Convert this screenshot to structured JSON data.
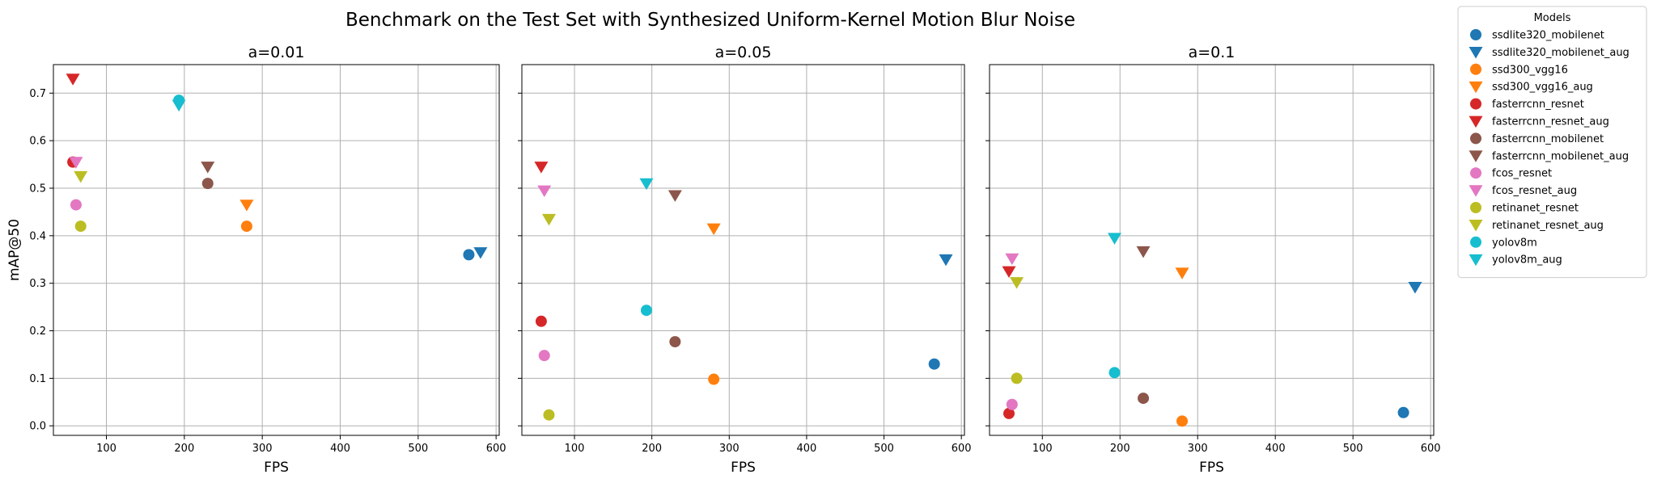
{
  "figure": {
    "title": "Benchmark on the Test Set with Synthesized Uniform-Kernel Motion Blur Noise"
  },
  "legend": {
    "title": "Models",
    "placement": "outside-right",
    "items": [
      {
        "name": "ssdlite320_mobilenet",
        "color": "#1f77b4",
        "marker": "circle"
      },
      {
        "name": "ssdlite320_mobilenet_aug",
        "color": "#1f77b4",
        "marker": "triangle-down"
      },
      {
        "name": "ssd300_vgg16",
        "color": "#ff7f0e",
        "marker": "circle"
      },
      {
        "name": "ssd300_vgg16_aug",
        "color": "#ff7f0e",
        "marker": "triangle-down"
      },
      {
        "name": "fasterrcnn_resnet",
        "color": "#d62728",
        "marker": "circle"
      },
      {
        "name": "fasterrcnn_resnet_aug",
        "color": "#d62728",
        "marker": "triangle-down"
      },
      {
        "name": "fasterrcnn_mobilenet",
        "color": "#8c564b",
        "marker": "circle"
      },
      {
        "name": "fasterrcnn_mobilenet_aug",
        "color": "#8c564b",
        "marker": "triangle-down"
      },
      {
        "name": "fcos_resnet",
        "color": "#e377c2",
        "marker": "circle"
      },
      {
        "name": "fcos_resnet_aug",
        "color": "#e377c2",
        "marker": "triangle-down"
      },
      {
        "name": "retinanet_resnet",
        "color": "#bcbd22",
        "marker": "circle"
      },
      {
        "name": "retinanet_resnet_aug",
        "color": "#bcbd22",
        "marker": "triangle-down"
      },
      {
        "name": "yolov8m",
        "color": "#17becf",
        "marker": "circle"
      },
      {
        "name": "yolov8m_aug",
        "color": "#17becf",
        "marker": "triangle-down"
      }
    ]
  },
  "chart_data": [
    {
      "type": "scatter",
      "title": "a=0.01",
      "xlabel": "FPS",
      "ylabel": "mAP@50",
      "xlim": [
        32,
        604
      ],
      "ylim": [
        -0.02,
        0.76
      ],
      "xticks": [
        100,
        200,
        300,
        400,
        500,
        600
      ],
      "yticks": [
        0.0,
        0.1,
        0.2,
        0.3,
        0.4,
        0.5,
        0.6,
        0.7
      ],
      "grid": true,
      "series": [
        {
          "name": "ssdlite320_mobilenet",
          "x": 565,
          "y": 0.36
        },
        {
          "name": "ssdlite320_mobilenet_aug",
          "x": 580,
          "y": 0.365
        },
        {
          "name": "ssd300_vgg16",
          "x": 280,
          "y": 0.42
        },
        {
          "name": "ssd300_vgg16_aug",
          "x": 280,
          "y": 0.465
        },
        {
          "name": "fasterrcnn_resnet",
          "x": 57,
          "y": 0.555
        },
        {
          "name": "fasterrcnn_resnet_aug",
          "x": 57,
          "y": 0.73
        },
        {
          "name": "fasterrcnn_mobilenet",
          "x": 230,
          "y": 0.51
        },
        {
          "name": "fasterrcnn_mobilenet_aug",
          "x": 230,
          "y": 0.545
        },
        {
          "name": "fcos_resnet",
          "x": 61,
          "y": 0.465
        },
        {
          "name": "fcos_resnet_aug",
          "x": 61,
          "y": 0.555
        },
        {
          "name": "retinanet_resnet",
          "x": 67,
          "y": 0.42
        },
        {
          "name": "retinanet_resnet_aug",
          "x": 67,
          "y": 0.525
        },
        {
          "name": "yolov8m",
          "x": 193,
          "y": 0.685
        },
        {
          "name": "yolov8m_aug",
          "x": 193,
          "y": 0.675
        }
      ]
    },
    {
      "type": "scatter",
      "title": "a=0.05",
      "xlabel": "FPS",
      "ylabel": "",
      "xlim": [
        32,
        604
      ],
      "ylim": [
        -0.02,
        0.76
      ],
      "xticks": [
        100,
        200,
        300,
        400,
        500,
        600
      ],
      "yticks": [
        0.0,
        0.1,
        0.2,
        0.3,
        0.4,
        0.5,
        0.6,
        0.7
      ],
      "grid": true,
      "series": [
        {
          "name": "ssdlite320_mobilenet",
          "x": 565,
          "y": 0.13
        },
        {
          "name": "ssdlite320_mobilenet_aug",
          "x": 580,
          "y": 0.35
        },
        {
          "name": "ssd300_vgg16",
          "x": 280,
          "y": 0.098
        },
        {
          "name": "ssd300_vgg16_aug",
          "x": 280,
          "y": 0.415
        },
        {
          "name": "fasterrcnn_resnet",
          "x": 57,
          "y": 0.22
        },
        {
          "name": "fasterrcnn_resnet_aug",
          "x": 57,
          "y": 0.545
        },
        {
          "name": "fasterrcnn_mobilenet",
          "x": 230,
          "y": 0.177
        },
        {
          "name": "fasterrcnn_mobilenet_aug",
          "x": 230,
          "y": 0.485
        },
        {
          "name": "fcos_resnet",
          "x": 61,
          "y": 0.148
        },
        {
          "name": "fcos_resnet_aug",
          "x": 61,
          "y": 0.495
        },
        {
          "name": "retinanet_resnet",
          "x": 67,
          "y": 0.023
        },
        {
          "name": "retinanet_resnet_aug",
          "x": 67,
          "y": 0.435
        },
        {
          "name": "yolov8m",
          "x": 193,
          "y": 0.243
        },
        {
          "name": "yolov8m_aug",
          "x": 193,
          "y": 0.51
        }
      ]
    },
    {
      "type": "scatter",
      "title": "a=0.1",
      "xlabel": "FPS",
      "ylabel": "",
      "xlim": [
        32,
        604
      ],
      "ylim": [
        -0.02,
        0.76
      ],
      "xticks": [
        100,
        200,
        300,
        400,
        500,
        600
      ],
      "yticks": [
        0.0,
        0.1,
        0.2,
        0.3,
        0.4,
        0.5,
        0.6,
        0.7
      ],
      "grid": true,
      "series": [
        {
          "name": "ssdlite320_mobilenet",
          "x": 565,
          "y": 0.028
        },
        {
          "name": "ssdlite320_mobilenet_aug",
          "x": 580,
          "y": 0.292
        },
        {
          "name": "ssd300_vgg16",
          "x": 280,
          "y": 0.01
        },
        {
          "name": "ssd300_vgg16_aug",
          "x": 280,
          "y": 0.322
        },
        {
          "name": "fasterrcnn_resnet",
          "x": 57,
          "y": 0.026
        },
        {
          "name": "fasterrcnn_resnet_aug",
          "x": 57,
          "y": 0.325
        },
        {
          "name": "fasterrcnn_mobilenet",
          "x": 230,
          "y": 0.058
        },
        {
          "name": "fasterrcnn_mobilenet_aug",
          "x": 230,
          "y": 0.367
        },
        {
          "name": "fcos_resnet",
          "x": 61,
          "y": 0.045
        },
        {
          "name": "fcos_resnet_aug",
          "x": 61,
          "y": 0.352
        },
        {
          "name": "retinanet_resnet",
          "x": 67,
          "y": 0.1
        },
        {
          "name": "retinanet_resnet_aug",
          "x": 67,
          "y": 0.302
        },
        {
          "name": "yolov8m",
          "x": 193,
          "y": 0.112
        },
        {
          "name": "yolov8m_aug",
          "x": 193,
          "y": 0.395
        }
      ]
    }
  ]
}
